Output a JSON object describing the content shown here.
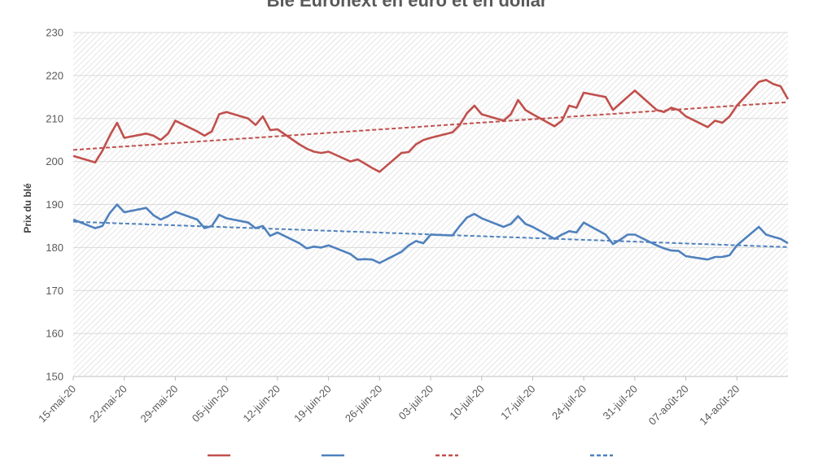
{
  "chart_data": {
    "type": "line",
    "title": "Blé Euronext en euro et en dollar",
    "ylabel": "Prix du blé",
    "xlabel": "",
    "ylim": [
      150,
      230
    ],
    "yticks": [
      150,
      160,
      170,
      180,
      190,
      200,
      210,
      220,
      230
    ],
    "x_range": [
      "2020-05-15",
      "2020-08-21"
    ],
    "x_tick_dates": [
      "2020-05-15",
      "2020-05-22",
      "2020-05-29",
      "2020-06-05",
      "2020-06-12",
      "2020-06-19",
      "2020-06-26",
      "2020-07-03",
      "2020-07-10",
      "2020-07-17",
      "2020-07-24",
      "2020-07-31",
      "2020-08-07",
      "2020-08-14"
    ],
    "x_tick_labels": [
      "15-mai-20",
      "22-mai-20",
      "29-mai-20",
      "05-juin-20",
      "12-juin-20",
      "19-juin-20",
      "26-juin-20",
      "03-juil-20",
      "10-juil-20",
      "17-juil-20",
      "24-juil-20",
      "31-juil-20",
      "07-août-20",
      "14-août-20"
    ],
    "grid": true,
    "background": "diagonal-hatch",
    "legend_position": "bottom",
    "series": [
      {
        "color": "#c0504d",
        "style": "solid",
        "points": [
          [
            "2020-05-15",
            201.3
          ],
          [
            "2020-05-18",
            199.8
          ],
          [
            "2020-05-19",
            202.5
          ],
          [
            "2020-05-20",
            206.0
          ],
          [
            "2020-05-21",
            209.0
          ],
          [
            "2020-05-22",
            205.5
          ],
          [
            "2020-05-25",
            206.5
          ],
          [
            "2020-05-26",
            206.0
          ],
          [
            "2020-05-27",
            205.0
          ],
          [
            "2020-05-28",
            206.5
          ],
          [
            "2020-05-29",
            209.5
          ],
          [
            "2020-06-01",
            207.0
          ],
          [
            "2020-06-02",
            206.0
          ],
          [
            "2020-06-03",
            207.0
          ],
          [
            "2020-06-04",
            211.0
          ],
          [
            "2020-06-05",
            211.5
          ],
          [
            "2020-06-08",
            210.0
          ],
          [
            "2020-06-09",
            208.5
          ],
          [
            "2020-06-10",
            210.5
          ],
          [
            "2020-06-11",
            207.3
          ],
          [
            "2020-06-12",
            207.5
          ],
          [
            "2020-06-15",
            204.0
          ],
          [
            "2020-06-16",
            203.0
          ],
          [
            "2020-06-17",
            202.3
          ],
          [
            "2020-06-18",
            202.0
          ],
          [
            "2020-06-19",
            202.3
          ],
          [
            "2020-06-22",
            200.0
          ],
          [
            "2020-06-23",
            200.5
          ],
          [
            "2020-06-24",
            199.5
          ],
          [
            "2020-06-25",
            198.5
          ],
          [
            "2020-06-26",
            197.6
          ],
          [
            "2020-06-29",
            202.0
          ],
          [
            "2020-06-30",
            202.2
          ],
          [
            "2020-07-01",
            204.0
          ],
          [
            "2020-07-02",
            205.0
          ],
          [
            "2020-07-03",
            205.5
          ],
          [
            "2020-07-06",
            206.8
          ],
          [
            "2020-07-07",
            208.5
          ],
          [
            "2020-07-08",
            211.3
          ],
          [
            "2020-07-09",
            213.0
          ],
          [
            "2020-07-10",
            211.0
          ],
          [
            "2020-07-13",
            209.5
          ],
          [
            "2020-07-14",
            211.0
          ],
          [
            "2020-07-15",
            214.3
          ],
          [
            "2020-07-16",
            212.0
          ],
          [
            "2020-07-17",
            211.0
          ],
          [
            "2020-07-20",
            208.2
          ],
          [
            "2020-07-21",
            209.5
          ],
          [
            "2020-07-22",
            213.0
          ],
          [
            "2020-07-23",
            212.5
          ],
          [
            "2020-07-24",
            216.0
          ],
          [
            "2020-07-27",
            215.0
          ],
          [
            "2020-07-28",
            212.0
          ],
          [
            "2020-07-29",
            213.5
          ],
          [
            "2020-07-30",
            215.0
          ],
          [
            "2020-07-31",
            216.5
          ],
          [
            "2020-08-03",
            212.0
          ],
          [
            "2020-08-04",
            211.5
          ],
          [
            "2020-08-05",
            212.5
          ],
          [
            "2020-08-06",
            212.0
          ],
          [
            "2020-08-07",
            210.5
          ],
          [
            "2020-08-10",
            208.0
          ],
          [
            "2020-08-11",
            209.5
          ],
          [
            "2020-08-12",
            209.0
          ],
          [
            "2020-08-13",
            210.5
          ],
          [
            "2020-08-14",
            213.0
          ],
          [
            "2020-08-17",
            218.5
          ],
          [
            "2020-08-18",
            219.0
          ],
          [
            "2020-08-19",
            218.0
          ],
          [
            "2020-08-20",
            217.5
          ],
          [
            "2020-08-21",
            214.5
          ]
        ]
      },
      {
        "color": "#4f81bd",
        "style": "solid",
        "points": [
          [
            "2020-05-15",
            186.5
          ],
          [
            "2020-05-18",
            184.5
          ],
          [
            "2020-05-19",
            185.0
          ],
          [
            "2020-05-20",
            188.0
          ],
          [
            "2020-05-21",
            190.0
          ],
          [
            "2020-05-22",
            188.2
          ],
          [
            "2020-05-25",
            189.2
          ],
          [
            "2020-05-26",
            187.5
          ],
          [
            "2020-05-27",
            186.5
          ],
          [
            "2020-05-28",
            187.3
          ],
          [
            "2020-05-29",
            188.3
          ],
          [
            "2020-06-01",
            186.5
          ],
          [
            "2020-06-02",
            184.5
          ],
          [
            "2020-06-03",
            185.0
          ],
          [
            "2020-06-04",
            187.6
          ],
          [
            "2020-06-05",
            186.8
          ],
          [
            "2020-06-08",
            185.8
          ],
          [
            "2020-06-09",
            184.5
          ],
          [
            "2020-06-10",
            185.0
          ],
          [
            "2020-06-11",
            182.7
          ],
          [
            "2020-06-12",
            183.5
          ],
          [
            "2020-06-15",
            181.0
          ],
          [
            "2020-06-16",
            179.8
          ],
          [
            "2020-06-17",
            180.2
          ],
          [
            "2020-06-18",
            180.0
          ],
          [
            "2020-06-19",
            180.5
          ],
          [
            "2020-06-22",
            178.5
          ],
          [
            "2020-06-23",
            177.2
          ],
          [
            "2020-06-24",
            177.3
          ],
          [
            "2020-06-25",
            177.2
          ],
          [
            "2020-06-26",
            176.4
          ],
          [
            "2020-06-29",
            179.0
          ],
          [
            "2020-06-30",
            180.5
          ],
          [
            "2020-07-01",
            181.5
          ],
          [
            "2020-07-02",
            181.0
          ],
          [
            "2020-07-03",
            183.0
          ],
          [
            "2020-07-06",
            182.8
          ],
          [
            "2020-07-07",
            185.0
          ],
          [
            "2020-07-08",
            187.0
          ],
          [
            "2020-07-09",
            187.8
          ],
          [
            "2020-07-10",
            186.8
          ],
          [
            "2020-07-13",
            184.8
          ],
          [
            "2020-07-14",
            185.5
          ],
          [
            "2020-07-15",
            187.3
          ],
          [
            "2020-07-16",
            185.5
          ],
          [
            "2020-07-17",
            184.8
          ],
          [
            "2020-07-20",
            182.0
          ],
          [
            "2020-07-21",
            183.0
          ],
          [
            "2020-07-22",
            183.8
          ],
          [
            "2020-07-23",
            183.5
          ],
          [
            "2020-07-24",
            185.8
          ],
          [
            "2020-07-27",
            183.0
          ],
          [
            "2020-07-28",
            180.8
          ],
          [
            "2020-07-29",
            181.8
          ],
          [
            "2020-07-30",
            183.0
          ],
          [
            "2020-07-31",
            183.0
          ],
          [
            "2020-08-03",
            180.5
          ],
          [
            "2020-08-04",
            179.8
          ],
          [
            "2020-08-05",
            179.3
          ],
          [
            "2020-08-06",
            179.2
          ],
          [
            "2020-08-07",
            178.0
          ],
          [
            "2020-08-10",
            177.2
          ],
          [
            "2020-08-11",
            177.8
          ],
          [
            "2020-08-12",
            177.8
          ],
          [
            "2020-08-13",
            178.2
          ],
          [
            "2020-08-14",
            180.5
          ],
          [
            "2020-08-17",
            184.8
          ],
          [
            "2020-08-18",
            183.0
          ],
          [
            "2020-08-19",
            182.5
          ],
          [
            "2020-08-20",
            182.0
          ],
          [
            "2020-08-21",
            181.0
          ]
        ]
      }
    ],
    "trendlines": [
      {
        "color": "#c0504d",
        "style": "dashed",
        "start": [
          "2020-05-15",
          202.7
        ],
        "end": [
          "2020-08-21",
          213.8
        ]
      },
      {
        "color": "#4f81bd",
        "style": "dashed",
        "start": [
          "2020-05-15",
          186.0
        ],
        "end": [
          "2020-08-21",
          180.1
        ]
      }
    ]
  }
}
